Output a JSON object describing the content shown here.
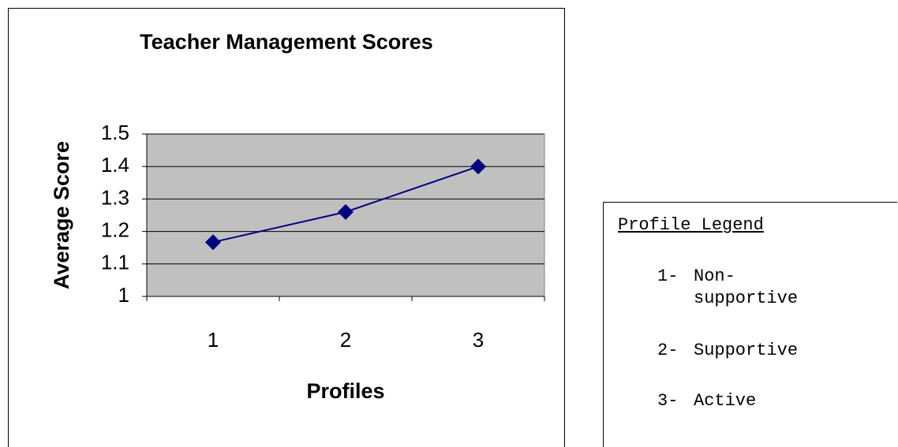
{
  "chart_data": {
    "type": "line",
    "title": "Teacher Management Scores",
    "xlabel": "Profiles",
    "ylabel": "Average Score",
    "categories": [
      "1",
      "2",
      "3"
    ],
    "values": [
      1.167,
      1.26,
      1.4
    ],
    "color": "#000080",
    "ylim": [
      1,
      1.5
    ],
    "yticks": [
      1,
      1.1,
      1.2,
      1.3,
      1.4,
      1.5
    ],
    "grid": true,
    "legend_box": {
      "title": "Profile Legend",
      "items": [
        {
          "number": "1-",
          "label": "Non-supportive"
        },
        {
          "number": "2-",
          "label": "Supportive"
        },
        {
          "number": "3-",
          "label": "Active"
        }
      ]
    }
  }
}
